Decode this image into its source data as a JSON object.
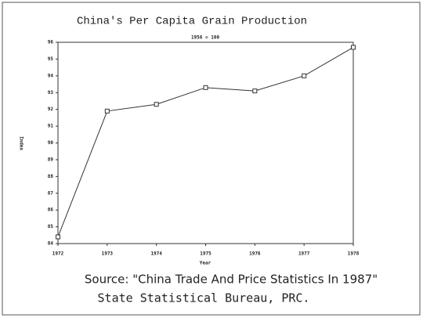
{
  "chart_data": {
    "type": "line",
    "title": "China's Per Capita Grain Production",
    "subtitle": "1956 = 100",
    "x_label": "Year",
    "y_label": "Index",
    "x": [
      1972,
      1973,
      1974,
      1975,
      1976,
      1977,
      1978
    ],
    "values": [
      84.4,
      91.9,
      92.3,
      93.3,
      93.1,
      94.0,
      95.7
    ],
    "color": "#333333",
    "xlim": [
      1972,
      1978
    ],
    "xticks": [
      1972,
      1973,
      1974,
      1975,
      1976,
      1977,
      1978
    ],
    "ylim": [
      84,
      96
    ],
    "yticks": [
      84,
      85,
      86,
      87,
      88,
      89,
      90,
      91,
      92,
      93,
      94,
      95,
      96
    ],
    "grid": false,
    "annotations": [
      "Source: \"China Trade And Price Statistics In 1987\"",
      "State Statistical Bureau, PRC."
    ]
  }
}
